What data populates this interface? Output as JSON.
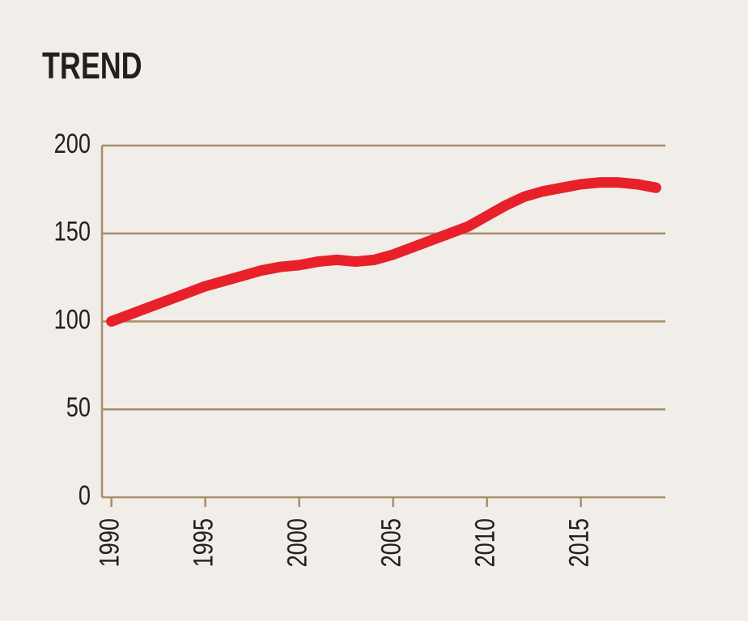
{
  "chart_data": {
    "type": "line",
    "title": "TREND",
    "x": [
      1990,
      1991,
      1992,
      1993,
      1994,
      1995,
      1996,
      1997,
      1998,
      1999,
      2000,
      2001,
      2002,
      2003,
      2004,
      2005,
      2006,
      2007,
      2008,
      2009,
      2010,
      2011,
      2012,
      2013,
      2014,
      2015,
      2016,
      2017,
      2018,
      2019
    ],
    "series": [
      {
        "color": "#e8202a",
        "values": [
          100,
          104,
          108,
          112,
          116,
          120,
          123,
          126,
          129,
          131,
          132,
          134,
          135,
          134,
          135,
          138,
          142,
          146,
          150,
          154,
          160,
          166,
          171,
          174,
          176,
          178,
          179,
          179,
          178,
          176
        ]
      }
    ],
    "xlim": [
      1989.5,
      2019.5
    ],
    "xticks": [
      1990,
      1995,
      2000,
      2005,
      2010,
      2015
    ],
    "ylim": [
      0,
      200
    ],
    "yticks": [
      0,
      50,
      100,
      150,
      200
    ],
    "grid": true
  }
}
